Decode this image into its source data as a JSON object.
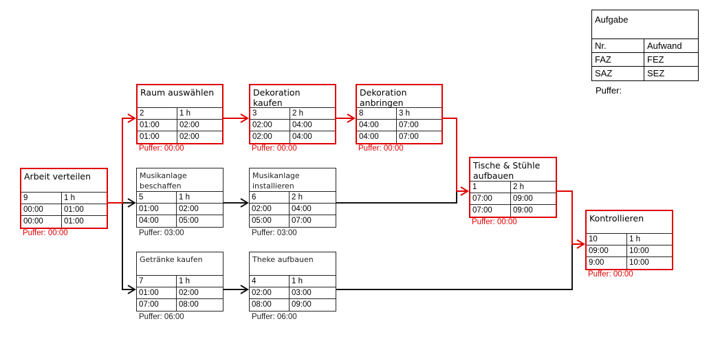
{
  "legend": {
    "title": "Aufgabe",
    "rows": [
      [
        "Nr.",
        "Aufwand"
      ],
      [
        "FAZ",
        "FEZ"
      ],
      [
        "SAZ",
        "SEZ"
      ]
    ],
    "puffer_label": "Puffer:"
  },
  "colors": {
    "critical": "#e00000",
    "normal": "#222222"
  },
  "nodes": [
    {
      "id": "arbeit",
      "title": "Arbeit verteilen",
      "nr": "9",
      "aufwand": "1 h",
      "faz": "00:00",
      "fez": "01:00",
      "saz": "00:00",
      "sez": "01:00",
      "puffer": "Puffer: 00:00",
      "critical": true
    },
    {
      "id": "raum",
      "title": "Raum auswählen",
      "nr": "2",
      "aufwand": "1 h",
      "faz": "01:00",
      "fez": "02:00",
      "saz": "01:00",
      "sez": "02:00",
      "puffer": "Puffer: 00:00",
      "critical": true
    },
    {
      "id": "dekokauf",
      "title": "Dekoration kaufen",
      "nr": "3",
      "aufwand": "2 h",
      "faz": "02:00",
      "fez": "04:00",
      "saz": "02:00",
      "sez": "04:00",
      "puffer": "Puffer: 00:00",
      "critical": true
    },
    {
      "id": "dekoanbr",
      "title": "Dekoration anbringen",
      "nr": "8",
      "aufwand": "3 h",
      "faz": "04:00",
      "fez": "07:00",
      "saz": "04:00",
      "sez": "07:00",
      "puffer": "Puffer: 00:00",
      "critical": true
    },
    {
      "id": "musikbesch",
      "title": "Musikanlage beschaffen",
      "nr": "5",
      "aufwand": "1 h",
      "faz": "01:00",
      "fez": "02:00",
      "saz": "04:00",
      "sez": "05:00",
      "puffer": "Puffer: 03:00",
      "critical": false
    },
    {
      "id": "musikinst",
      "title": "Musikanlage installieren",
      "nr": "6",
      "aufwand": "2 h",
      "faz": "02:00",
      "fez": "04:00",
      "saz": "05:00",
      "sez": "07:00",
      "puffer": "Puffer: 03:00",
      "critical": false
    },
    {
      "id": "getraenke",
      "title": "Getränke kaufen",
      "nr": "7",
      "aufwand": "1 h",
      "faz": "01:00",
      "fez": "02:00",
      "saz": "07:00",
      "sez": "08:00",
      "puffer": "Puffer: 06:00",
      "critical": false
    },
    {
      "id": "theke",
      "title": "Theke aufbauen",
      "nr": "4",
      "aufwand": "1 h",
      "faz": "02:00",
      "fez": "03:00",
      "saz": "08:00",
      "sez": "09:00",
      "puffer": "Puffer: 06:00",
      "critical": false
    },
    {
      "id": "tische",
      "title": "Tische & Stühle aufbauen",
      "nr": "1",
      "aufwand": "2 h",
      "faz": "07:00",
      "fez": "09:00",
      "saz": "07:00",
      "sez": "09:00",
      "puffer": "Puffer: 00:00",
      "critical": true
    },
    {
      "id": "kontrolle",
      "title": "Kontrollieren",
      "nr": "10",
      "aufwand": "1 h",
      "faz": "09:00",
      "fez": "10:00",
      "saz": "9:00",
      "sez": "10:00",
      "puffer": "Puffer: 00:00",
      "critical": true
    }
  ],
  "edges": [
    {
      "from": "arbeit",
      "to": "raum",
      "critical": true
    },
    {
      "from": "arbeit",
      "to": "musikbesch",
      "critical": false
    },
    {
      "from": "arbeit",
      "to": "getraenke",
      "critical": false
    },
    {
      "from": "raum",
      "to": "dekokauf",
      "critical": true
    },
    {
      "from": "dekokauf",
      "to": "dekoanbr",
      "critical": true
    },
    {
      "from": "dekoanbr",
      "to": "tische",
      "critical": true
    },
    {
      "from": "musikbesch",
      "to": "musikinst",
      "critical": false
    },
    {
      "from": "musikinst",
      "to": "tische",
      "critical": false
    },
    {
      "from": "getraenke",
      "to": "theke",
      "critical": false
    },
    {
      "from": "theke",
      "to": "kontrolle",
      "critical": false
    },
    {
      "from": "tische",
      "to": "kontrolle",
      "critical": true
    }
  ]
}
